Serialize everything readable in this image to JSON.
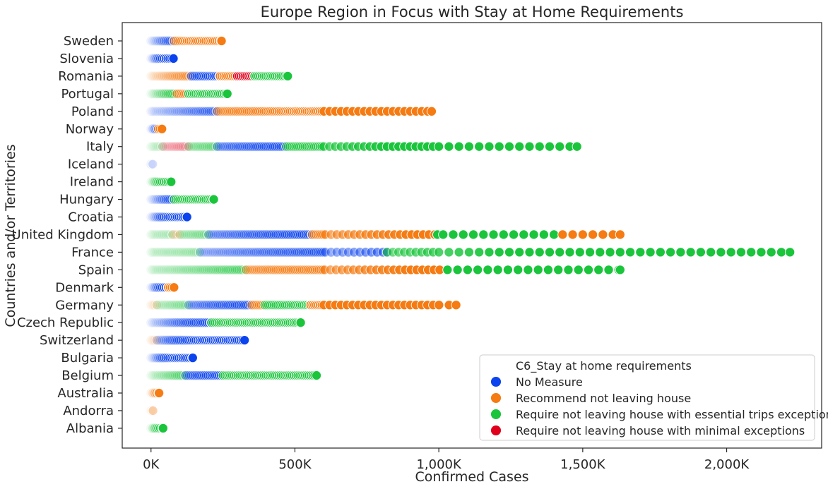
{
  "chart_data": {
    "type": "scatter",
    "title": "Europe Region in Focus with Stay at Home Requirements",
    "xlabel": "Confirmed Cases",
    "ylabel": "Countries and/or Territories",
    "xlim": [
      -100000,
      2330000
    ],
    "x_ticks": [
      0,
      500000,
      1000000,
      1500000,
      2000000
    ],
    "x_tick_labels": [
      "0K",
      "500K",
      "1,000K",
      "1,500K",
      "2,000K"
    ],
    "categories": [
      "Sweden",
      "Slovenia",
      "Romania",
      "Portugal",
      "Poland",
      "Norway",
      "Italy",
      "Iceland",
      "Ireland",
      "Hungary",
      "Croatia",
      "United Kingdom",
      "France",
      "Spain",
      "Denmark",
      "Germany",
      "Czech Republic",
      "Switzerland",
      "Bulgaria",
      "Belgium",
      "Australia",
      "Andorra",
      "Albania"
    ],
    "legend": {
      "title": "C6_Stay at home requirements",
      "placement": "lower right",
      "entries": [
        {
          "label": "No Measure",
          "color": "#0b43ee"
        },
        {
          "label": "Recommend not leaving house",
          "color": "#f57b12"
        },
        {
          "label": "Require not leaving house with essential trips exceptions",
          "color": "#1ac53c"
        },
        {
          "label": "Require not leaving house with minimal exceptions",
          "color": "#e0001b"
        }
      ]
    },
    "series": [
      {
        "country": "Sweden",
        "segments": [
          [
            "No Measure",
            0,
            80000
          ],
          [
            "Recommend not leaving house",
            80000,
            245000
          ]
        ]
      },
      {
        "country": "Slovenia",
        "segments": [
          [
            "No Measure",
            0,
            78000
          ]
        ]
      },
      {
        "country": "Romania",
        "segments": [
          [
            "Recommend not leaving house",
            0,
            140000
          ],
          [
            "No Measure",
            140000,
            240000
          ],
          [
            "Recommend not leaving house",
            240000,
            300000
          ],
          [
            "Require not leaving house with minimal exceptions",
            300000,
            360000
          ],
          [
            "Require not leaving house with essential trips exceptions",
            360000,
            475000
          ]
        ]
      },
      {
        "country": "Portugal",
        "segments": [
          [
            "Require not leaving house with essential trips exceptions",
            0,
            90000
          ],
          [
            "Recommend not leaving house",
            90000,
            130000
          ],
          [
            "Require not leaving house with essential trips exceptions",
            130000,
            265000
          ]
        ]
      },
      {
        "country": "Poland",
        "segments": [
          [
            "No Measure",
            0,
            230000
          ],
          [
            "Recommend not leaving house",
            230000,
            975000
          ]
        ]
      },
      {
        "country": "Norway",
        "segments": [
          [
            "No Measure",
            0,
            25000
          ],
          [
            "Recommend not leaving house",
            25000,
            38000
          ]
        ]
      },
      {
        "country": "Italy",
        "segments": [
          [
            "Require not leaving house with essential trips exceptions",
            0,
            40000
          ],
          [
            "Require not leaving house with minimal exceptions",
            40000,
            130000
          ],
          [
            "Require not leaving house with essential trips exceptions",
            130000,
            230000
          ],
          [
            "No Measure",
            230000,
            470000
          ],
          [
            "Require not leaving house with essential trips exceptions",
            470000,
            1480000
          ]
        ]
      },
      {
        "country": "Iceland",
        "segments": [
          [
            "No Measure",
            0,
            6000
          ]
        ]
      },
      {
        "country": "Ireland",
        "segments": [
          [
            "Require not leaving house with essential trips exceptions",
            0,
            70000
          ]
        ]
      },
      {
        "country": "Hungary",
        "segments": [
          [
            "No Measure",
            0,
            80000
          ],
          [
            "Require not leaving house with essential trips exceptions",
            80000,
            218000
          ]
        ]
      },
      {
        "country": "Croatia",
        "segments": [
          [
            "No Measure",
            0,
            125000
          ]
        ]
      },
      {
        "country": "United Kingdom",
        "segments": [
          [
            "Require not leaving house with essential trips exceptions",
            0,
            75000
          ],
          [
            "Recommend not leaving house",
            75000,
            100000
          ],
          [
            "Require not leaving house with essential trips exceptions",
            100000,
            200000
          ],
          [
            "No Measure",
            200000,
            560000
          ],
          [
            "Recommend not leaving house",
            560000,
            995000
          ],
          [
            "Require not leaving house with essential trips exceptions",
            995000,
            1430000
          ],
          [
            "Recommend not leaving house",
            1430000,
            1630000
          ]
        ]
      },
      {
        "country": "France",
        "segments": [
          [
            "Require not leaving house with essential trips exceptions",
            0,
            170000
          ],
          [
            "No Measure",
            170000,
            820000
          ],
          [
            "Require not leaving house with essential trips exceptions",
            820000,
            2220000
          ]
        ]
      },
      {
        "country": "Spain",
        "segments": [
          [
            "Require not leaving house with essential trips exceptions",
            0,
            330000
          ],
          [
            "Recommend not leaving house",
            330000,
            1030000
          ],
          [
            "Require not leaving house with essential trips exceptions",
            1030000,
            1630000
          ]
        ]
      },
      {
        "country": "Denmark",
        "segments": [
          [
            "No Measure",
            0,
            60000
          ],
          [
            "Recommend not leaving house",
            60000,
            80000
          ]
        ]
      },
      {
        "country": "Germany",
        "segments": [
          [
            "Recommend not leaving house",
            0,
            20000
          ],
          [
            "Require not leaving house with essential trips exceptions",
            20000,
            130000
          ],
          [
            "No Measure",
            130000,
            350000
          ],
          [
            "Recommend not leaving house",
            350000,
            395000
          ],
          [
            "Require not leaving house with essential trips exceptions",
            395000,
            555000
          ],
          [
            "Recommend not leaving house",
            555000,
            1060000
          ]
        ]
      },
      {
        "country": "Czech Republic",
        "segments": [
          [
            "No Measure",
            0,
            210000
          ],
          [
            "Require not leaving house with essential trips exceptions",
            210000,
            520000
          ]
        ]
      },
      {
        "country": "Switzerland",
        "segments": [
          [
            "Recommend not leaving house",
            0,
            20000
          ],
          [
            "No Measure",
            20000,
            325000
          ]
        ]
      },
      {
        "country": "Bulgaria",
        "segments": [
          [
            "No Measure",
            0,
            145000
          ]
        ]
      },
      {
        "country": "Belgium",
        "segments": [
          [
            "Require not leaving house with essential trips exceptions",
            0,
            120000
          ],
          [
            "No Measure",
            120000,
            250000
          ],
          [
            "Require not leaving house with essential trips exceptions",
            250000,
            575000
          ]
        ]
      },
      {
        "country": "Australia",
        "segments": [
          [
            "Recommend not leaving house",
            0,
            28000
          ]
        ]
      },
      {
        "country": "Andorra",
        "segments": [
          [
            "Recommend not leaving house",
            0,
            7000
          ]
        ]
      },
      {
        "country": "Albania",
        "segments": [
          [
            "Require not leaving house with essential trips exceptions",
            0,
            42000
          ]
        ]
      }
    ]
  }
}
